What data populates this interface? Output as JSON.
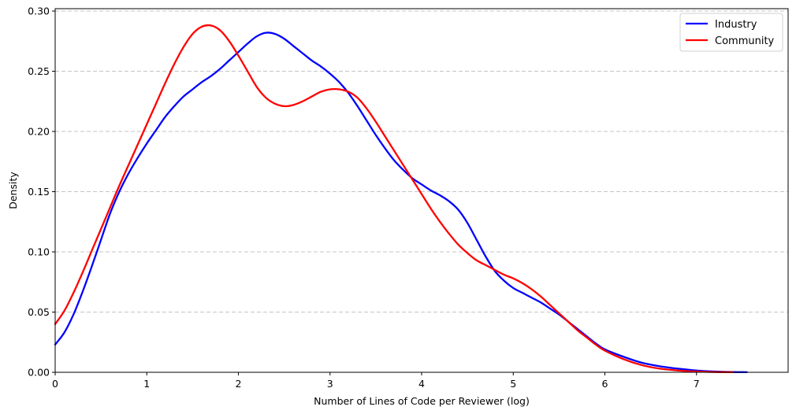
{
  "chart_data": {
    "type": "line",
    "xlabel": "Number of Lines of Code per Reviewer (log)",
    "ylabel": "Density",
    "xlim": [
      0,
      8
    ],
    "ylim": [
      0,
      0.302
    ],
    "x_ticks": [
      "0",
      "1",
      "2",
      "3",
      "4",
      "5",
      "6",
      "7"
    ],
    "y_ticks": [
      "0.00",
      "0.05",
      "0.10",
      "0.15",
      "0.20",
      "0.25",
      "0.30"
    ],
    "grid": {
      "y": true,
      "x": false,
      "style": "dashed"
    },
    "legend_position": "top-right",
    "series": [
      {
        "name": "Industry",
        "color": "#0000ff",
        "points": [
          [
            0,
            0.023
          ],
          [
            0.1,
            0.033
          ],
          [
            0.2,
            0.048
          ],
          [
            0.3,
            0.067
          ],
          [
            0.4,
            0.088
          ],
          [
            0.5,
            0.11
          ],
          [
            0.6,
            0.132
          ],
          [
            0.7,
            0.15
          ],
          [
            0.8,
            0.165
          ],
          [
            0.9,
            0.178
          ],
          [
            1.0,
            0.19
          ],
          [
            1.1,
            0.201
          ],
          [
            1.2,
            0.212
          ],
          [
            1.3,
            0.221
          ],
          [
            1.4,
            0.229
          ],
          [
            1.5,
            0.235
          ],
          [
            1.6,
            0.241
          ],
          [
            1.7,
            0.246
          ],
          [
            1.8,
            0.252
          ],
          [
            1.9,
            0.259
          ],
          [
            2.0,
            0.266
          ],
          [
            2.1,
            0.273
          ],
          [
            2.2,
            0.279
          ],
          [
            2.3,
            0.282
          ],
          [
            2.4,
            0.281
          ],
          [
            2.5,
            0.277
          ],
          [
            2.6,
            0.271
          ],
          [
            2.7,
            0.265
          ],
          [
            2.8,
            0.259
          ],
          [
            2.9,
            0.254
          ],
          [
            3.0,
            0.248
          ],
          [
            3.1,
            0.241
          ],
          [
            3.2,
            0.232
          ],
          [
            3.3,
            0.221
          ],
          [
            3.4,
            0.209
          ],
          [
            3.5,
            0.197
          ],
          [
            3.6,
            0.186
          ],
          [
            3.7,
            0.176
          ],
          [
            3.8,
            0.168
          ],
          [
            3.9,
            0.161
          ],
          [
            4.0,
            0.156
          ],
          [
            4.1,
            0.151
          ],
          [
            4.2,
            0.147
          ],
          [
            4.3,
            0.142
          ],
          [
            4.4,
            0.135
          ],
          [
            4.5,
            0.124
          ],
          [
            4.6,
            0.11
          ],
          [
            4.7,
            0.096
          ],
          [
            4.8,
            0.084
          ],
          [
            4.9,
            0.076
          ],
          [
            5.0,
            0.07
          ],
          [
            5.1,
            0.066
          ],
          [
            5.2,
            0.062
          ],
          [
            5.3,
            0.058
          ],
          [
            5.4,
            0.053
          ],
          [
            5.5,
            0.048
          ],
          [
            5.6,
            0.042
          ],
          [
            5.7,
            0.036
          ],
          [
            5.8,
            0.03
          ],
          [
            5.9,
            0.024
          ],
          [
            6.0,
            0.019
          ],
          [
            6.2,
            0.013
          ],
          [
            6.4,
            0.008
          ],
          [
            6.6,
            0.005
          ],
          [
            6.8,
            0.003
          ],
          [
            7.0,
            0.0015
          ],
          [
            7.2,
            0.0006
          ],
          [
            7.4,
            0.0002
          ],
          [
            7.55,
            0.0001
          ]
        ]
      },
      {
        "name": "Community",
        "color": "#ff0000",
        "points": [
          [
            0,
            0.04
          ],
          [
            0.1,
            0.051
          ],
          [
            0.2,
            0.066
          ],
          [
            0.3,
            0.083
          ],
          [
            0.4,
            0.101
          ],
          [
            0.5,
            0.119
          ],
          [
            0.6,
            0.137
          ],
          [
            0.7,
            0.155
          ],
          [
            0.8,
            0.172
          ],
          [
            0.9,
            0.189
          ],
          [
            1.0,
            0.206
          ],
          [
            1.1,
            0.223
          ],
          [
            1.2,
            0.24
          ],
          [
            1.3,
            0.256
          ],
          [
            1.4,
            0.27
          ],
          [
            1.5,
            0.281
          ],
          [
            1.6,
            0.287
          ],
          [
            1.7,
            0.288
          ],
          [
            1.8,
            0.284
          ],
          [
            1.9,
            0.275
          ],
          [
            2.0,
            0.263
          ],
          [
            2.1,
            0.25
          ],
          [
            2.2,
            0.237
          ],
          [
            2.3,
            0.228
          ],
          [
            2.4,
            0.223
          ],
          [
            2.5,
            0.221
          ],
          [
            2.6,
            0.222
          ],
          [
            2.7,
            0.225
          ],
          [
            2.8,
            0.229
          ],
          [
            2.9,
            0.233
          ],
          [
            3.0,
            0.235
          ],
          [
            3.1,
            0.235
          ],
          [
            3.2,
            0.233
          ],
          [
            3.3,
            0.228
          ],
          [
            3.4,
            0.219
          ],
          [
            3.5,
            0.208
          ],
          [
            3.6,
            0.196
          ],
          [
            3.7,
            0.184
          ],
          [
            3.8,
            0.172
          ],
          [
            3.9,
            0.16
          ],
          [
            4.0,
            0.148
          ],
          [
            4.1,
            0.136
          ],
          [
            4.2,
            0.125
          ],
          [
            4.3,
            0.115
          ],
          [
            4.4,
            0.106
          ],
          [
            4.5,
            0.099
          ],
          [
            4.6,
            0.093
          ],
          [
            4.7,
            0.089
          ],
          [
            4.8,
            0.085
          ],
          [
            4.9,
            0.081
          ],
          [
            5.0,
            0.078
          ],
          [
            5.1,
            0.074
          ],
          [
            5.2,
            0.069
          ],
          [
            5.3,
            0.063
          ],
          [
            5.4,
            0.056
          ],
          [
            5.5,
            0.049
          ],
          [
            5.6,
            0.042
          ],
          [
            5.7,
            0.035
          ],
          [
            5.8,
            0.029
          ],
          [
            5.9,
            0.023
          ],
          [
            6.0,
            0.018
          ],
          [
            6.2,
            0.011
          ],
          [
            6.4,
            0.006
          ],
          [
            6.6,
            0.003
          ],
          [
            6.8,
            0.0015
          ],
          [
            7.0,
            0.0006
          ],
          [
            7.2,
            0.0002
          ],
          [
            7.4,
            0.0001
          ]
        ]
      }
    ]
  }
}
